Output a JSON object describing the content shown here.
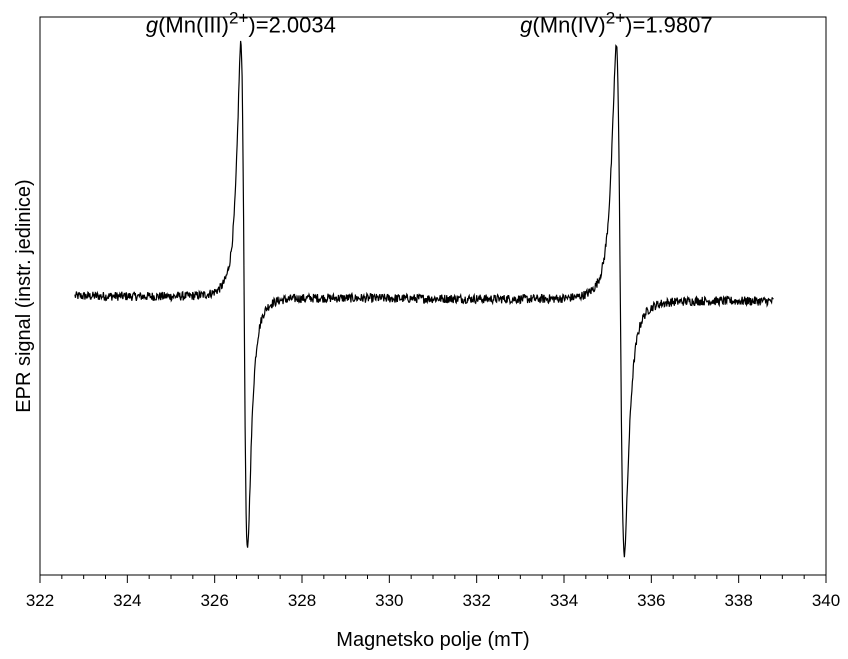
{
  "chart_data": {
    "type": "line",
    "xlabel": "Magnetsko polje (mT)",
    "ylabel": "EPR signal (instr. jedinice)",
    "xlim": [
      322,
      340
    ],
    "x_ticks": [
      322,
      324,
      326,
      328,
      330,
      332,
      334,
      336,
      338,
      340
    ],
    "x_tick_labels": [
      "322",
      "324",
      "326",
      "328",
      "330",
      "332",
      "334",
      "336",
      "338",
      "340"
    ],
    "x_minor_step": 0.5,
    "ylim": [
      -1.1,
      1.1
    ],
    "y_tick_labels_shown": false,
    "grid": false,
    "legend": "none",
    "line_color": "#000000",
    "series": [
      {
        "x_range": [
          322.8,
          338.8
        ],
        "baseline_left": 0.0,
        "baseline_right": -0.02,
        "noise_amplitude": 0.018,
        "peaks": [
          {
            "x_max": 326.6,
            "y_max": 1.0,
            "x_min": 326.75,
            "y_min": -1.0
          },
          {
            "x_max": 335.2,
            "y_max": 1.0,
            "x_min": 335.38,
            "y_min": -1.0
          }
        ]
      }
    ],
    "annotations": [
      {
        "prefix": "g",
        "body": "(Mn(III)",
        "sup": "2+",
        "suffix": ")=2.0034",
        "x": 326.6,
        "y": 1.0
      },
      {
        "prefix": "g",
        "body": "(Mn(IV)",
        "sup": "2+",
        "suffix": ")=1.9807",
        "x": 335.2,
        "y": 1.0
      }
    ]
  }
}
